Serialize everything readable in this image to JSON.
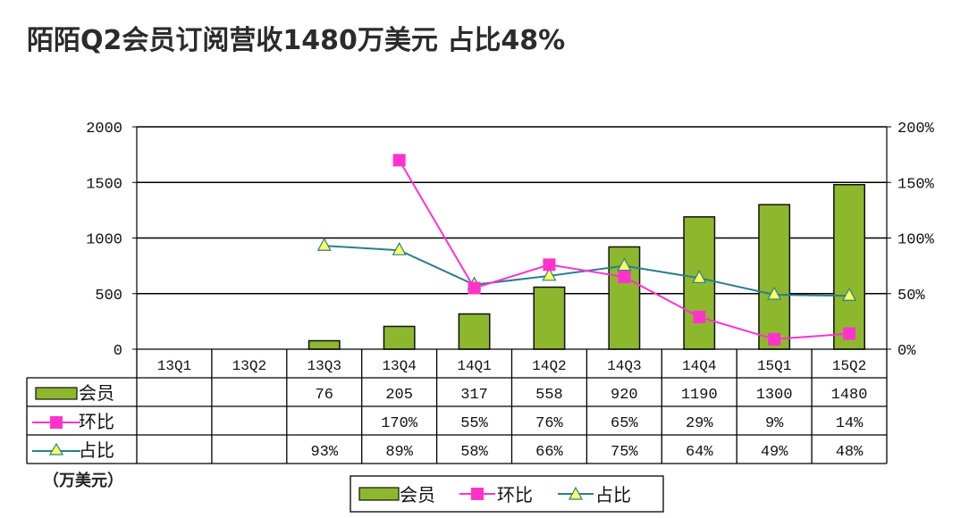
{
  "title": "陌陌Q2会员订阅营收1480万美元 占比48%",
  "unit_label": "（万美元）",
  "colors": {
    "bar": "#8db82e",
    "bar_stroke": "#111111",
    "ring": "#ff33cc",
    "share": "#2a7f8a",
    "share_marker": "#ffff66"
  },
  "chart_data": {
    "type": "bar",
    "categories": [
      "13Q1",
      "13Q2",
      "13Q3",
      "13Q4",
      "14Q1",
      "14Q2",
      "14Q3",
      "14Q4",
      "15Q1",
      "15Q2"
    ],
    "y_left": {
      "ticks": [
        "0",
        "500",
        "1000",
        "1500",
        "2000"
      ],
      "range": [
        0,
        2000
      ]
    },
    "y_right": {
      "ticks": [
        "0%",
        "50%",
        "100%",
        "150%",
        "200%"
      ],
      "range": [
        0,
        200
      ]
    },
    "series": [
      {
        "name": "会员",
        "type": "bar",
        "axis": "left",
        "values": [
          null,
          null,
          76,
          205,
          317,
          558,
          920,
          1190,
          1300,
          1480
        ],
        "labels": [
          "",
          "",
          "76",
          "205",
          "317",
          "558",
          "920",
          "1190",
          "1300",
          "1480"
        ]
      },
      {
        "name": "环比",
        "type": "line",
        "axis": "right",
        "marker": "square",
        "values": [
          null,
          null,
          null,
          170,
          55,
          76,
          65,
          29,
          9,
          14
        ],
        "labels": [
          "",
          "",
          "",
          "170%",
          "55%",
          "76%",
          "65%",
          "29%",
          "9%",
          "14%"
        ]
      },
      {
        "name": "占比",
        "type": "line",
        "axis": "right",
        "marker": "triangle",
        "values": [
          null,
          null,
          93,
          89,
          58,
          66,
          75,
          64,
          49,
          48
        ],
        "labels": [
          "",
          "",
          "93%",
          "89%",
          "58%",
          "66%",
          "75%",
          "64%",
          "49%",
          "48%"
        ]
      }
    ],
    "legend": [
      "会员",
      "环比",
      "占比"
    ],
    "legend_position": "bottom",
    "grid": true
  }
}
